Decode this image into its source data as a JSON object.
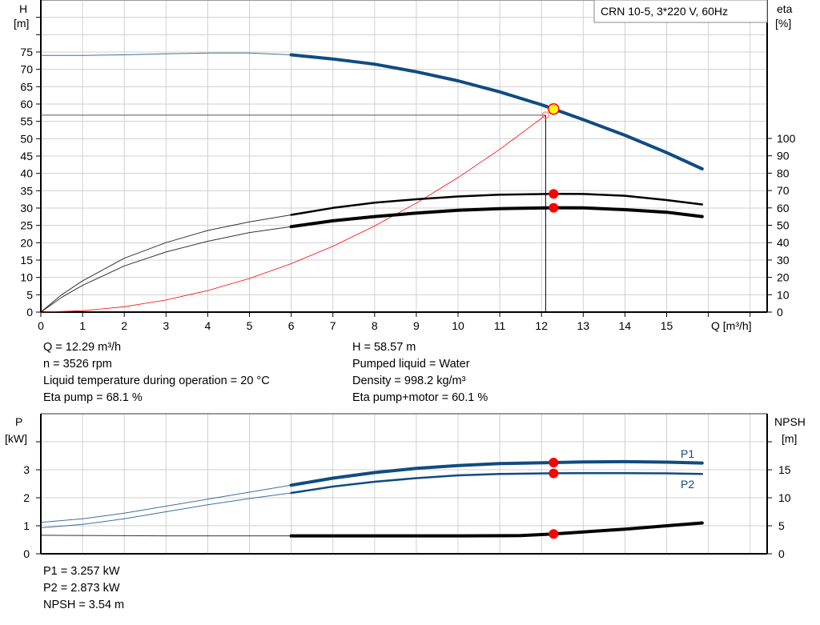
{
  "title_box": "CRN 10-5, 3*220 V, 60Hz",
  "chart_data": [
    {
      "type": "line",
      "title": "",
      "xlabel": "Q [m³/h]",
      "ylabel_left": [
        "H",
        "[m]"
      ],
      "ylabel_right": [
        "eta",
        "[%]"
      ],
      "xlim": [
        0,
        17.4
      ],
      "ylim_left": [
        0,
        90
      ],
      "ylim_right": [
        0,
        207
      ],
      "x_ticks": [
        "0",
        "1",
        "2",
        "3",
        "4",
        "5",
        "6",
        "7",
        "8",
        "9",
        "10",
        "11",
        "12",
        "13",
        "14",
        "15"
      ],
      "y_left_ticks": [
        "0",
        "5",
        "10",
        "15",
        "20",
        "25",
        "30",
        "35",
        "40",
        "45",
        "50",
        "55",
        "60",
        "65",
        "70",
        "75"
      ],
      "y_right_ticks": [
        "0",
        "10",
        "20",
        "30",
        "40",
        "50",
        "60",
        "70",
        "80",
        "90",
        "100"
      ],
      "grid": true,
      "series": [
        {
          "key": "H",
          "axis": "left",
          "color": "#0f4c81",
          "x": [
            0,
            1,
            2,
            3,
            4,
            5,
            6,
            7,
            8,
            9,
            10,
            11,
            12,
            12.29,
            13,
            14,
            15,
            15.85
          ],
          "y": [
            74,
            74,
            74.2,
            74.5,
            74.7,
            74.7,
            74.2,
            73,
            71.5,
            69.3,
            66.7,
            63.5,
            59.8,
            58.57,
            55.5,
            51,
            46,
            41.3
          ]
        },
        {
          "key": "eta_pump",
          "axis": "right",
          "color": "#000000",
          "x": [
            0,
            0.5,
            1,
            2,
            3,
            4,
            5,
            6,
            7,
            8,
            9,
            10,
            11,
            12.29,
            13,
            14,
            15,
            15.85
          ],
          "y": [
            0,
            10,
            18,
            31,
            40,
            47,
            52,
            56,
            60,
            63,
            65,
            66.6,
            67.6,
            68.1,
            68,
            67,
            64.5,
            62
          ]
        },
        {
          "key": "eta_pump_motor",
          "axis": "right",
          "color": "#000000",
          "x": [
            0,
            0.5,
            1,
            2,
            3,
            4,
            5,
            6,
            7,
            8,
            9,
            10,
            11,
            12.29,
            13,
            14,
            15,
            15.85
          ],
          "y": [
            0,
            8.5,
            15.4,
            26.6,
            34.6,
            40.8,
            45.8,
            49.2,
            52.6,
            55,
            57,
            58.6,
            59.6,
            60.1,
            60,
            59,
            57.5,
            55
          ]
        },
        {
          "key": "system",
          "axis": "left",
          "color": "#ff0000",
          "x": [
            0,
            1,
            2,
            3,
            4,
            5,
            6,
            7,
            8,
            9,
            10,
            11,
            12.1
          ],
          "y": [
            0,
            0.39,
            1.55,
            3.49,
            6.21,
            9.7,
            13.96,
            19.0,
            24.83,
            31.42,
            38.8,
            46.94,
            56.8
          ]
        }
      ],
      "operating_point": {
        "Q": 12.29,
        "H": 58.57,
        "eta_pump": 68.1,
        "eta_pump_motor": 60.1
      },
      "required_point": {
        "Q": 12.1,
        "H": 56.8
      }
    },
    {
      "type": "line",
      "title": "",
      "xlabel": "",
      "ylabel_left": [
        "P",
        "[kW]"
      ],
      "ylabel_right": [
        "NPSH",
        "[m]"
      ],
      "xlim": [
        0,
        17.4
      ],
      "ylim_left": [
        0,
        4.8
      ],
      "ylim_right": [
        0,
        24
      ],
      "y_left_ticks": [
        "0",
        "1",
        "2",
        "3"
      ],
      "y_right_ticks": [
        "0",
        "5",
        "10",
        "15"
      ],
      "grid": true,
      "series": [
        {
          "key": "P1",
          "name": "P1",
          "axis": "left",
          "color": "#0f4c81",
          "x": [
            0,
            1,
            2,
            3,
            4,
            5,
            6,
            7,
            8,
            9,
            10,
            11,
            12.29,
            13,
            14,
            15,
            15.85
          ],
          "y": [
            1.12,
            1.25,
            1.45,
            1.7,
            1.95,
            2.2,
            2.45,
            2.7,
            2.9,
            3.05,
            3.15,
            3.22,
            3.257,
            3.28,
            3.29,
            3.27,
            3.24
          ]
        },
        {
          "key": "P2",
          "name": "P2",
          "axis": "left",
          "color": "#0f4c81",
          "x": [
            0,
            1,
            2,
            3,
            4,
            5,
            6,
            7,
            8,
            9,
            10,
            11,
            12.29,
            13,
            14,
            15,
            15.85
          ],
          "y": [
            0.93,
            1.05,
            1.25,
            1.5,
            1.75,
            1.97,
            2.17,
            2.4,
            2.57,
            2.7,
            2.8,
            2.85,
            2.873,
            2.88,
            2.88,
            2.87,
            2.85
          ]
        },
        {
          "key": "NPSH",
          "axis": "right",
          "color": "#000000",
          "x": [
            0,
            3,
            6,
            8,
            10,
            11.5,
            12.29,
            13,
            14,
            15,
            15.85
          ],
          "y": [
            3.3,
            3.2,
            3.2,
            3.2,
            3.2,
            3.25,
            3.54,
            3.9,
            4.4,
            5.0,
            5.5
          ]
        }
      ],
      "operating_point": {
        "Q": 12.29,
        "P1": 3.257,
        "P2": 2.873,
        "NPSH": 3.54
      }
    }
  ],
  "info_top_left": [
    "Q = 12.29 m³/h",
    "n = 3526 rpm",
    "Liquid temperature during operation = 20 °C",
    "Eta pump = 68.1 %"
  ],
  "info_top_right": [
    "H = 58.57 m",
    "Pumped liquid = Water",
    "Density = 998.2 kg/m³",
    "Eta pump+motor = 60.1 %"
  ],
  "info_bottom": [
    "P1 = 3.257 kW",
    "P2 = 2.873 kW",
    "NPSH = 3.54 m"
  ]
}
